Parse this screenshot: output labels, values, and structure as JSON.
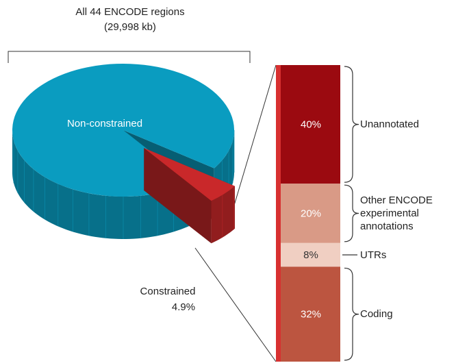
{
  "chart_data": [
    {
      "type": "pie3d",
      "title": "All 44 ENCODE regions",
      "subtitle": "(29,998 kb)",
      "categories": [
        "Non-constrained",
        "Constrained"
      ],
      "values": [
        95.1,
        4.9
      ],
      "value_labels": [
        null,
        "4.9%"
      ],
      "colors": [
        "#0a9cc0",
        "#c9282a"
      ]
    },
    {
      "type": "bar",
      "stacked": true,
      "series": [
        {
          "name": "Unannotated",
          "color": "#9b0a10",
          "values": [
            40
          ],
          "value_labels": [
            "40%"
          ]
        },
        {
          "name": "Other ENCODE experimental annotations",
          "color": "#d99a86",
          "values": [
            20
          ],
          "value_labels": [
            "20%"
          ]
        },
        {
          "name": "UTRs",
          "color": "#f0cfc2",
          "values": [
            8
          ],
          "value_labels": [
            "8%"
          ]
        },
        {
          "name": "Coding",
          "color": "#bc5540",
          "values": [
            32
          ],
          "value_labels": [
            "32%"
          ]
        }
      ]
    }
  ]
}
